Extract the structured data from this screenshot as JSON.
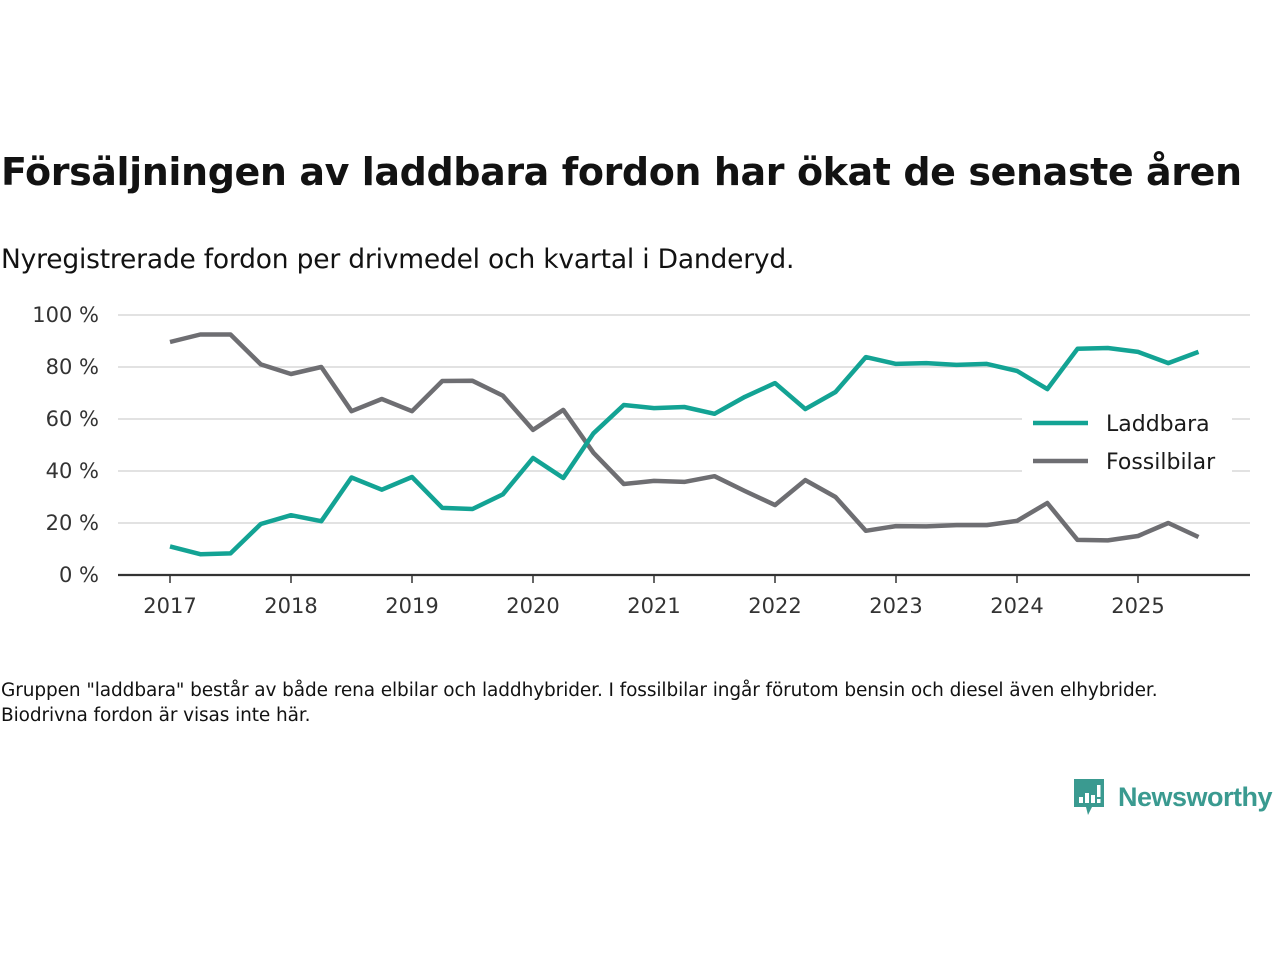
{
  "header": {
    "title": "Försäljningen av laddbara fordon har ökat de senaste åren",
    "subtitle": "Nyregistrerade fordon per drivmedel och kvartal i Danderyd."
  },
  "footnote": "Gruppen \"laddbara\" består av både rena elbilar och laddhybrider. I fossilbilar ingår förutom bensin och diesel även elhybrider. Biodrivna fordon är visas inte här.",
  "brand": {
    "name": "Newsworthy",
    "icon": "newsworthy-logo-icon",
    "color": "#3a9a90"
  },
  "chart_data": {
    "type": "line",
    "title": "Försäljningen av laddbara fordon har ökat de senaste åren",
    "subtitle": "Nyregistrerade fordon per drivmedel och kvartal i Danderyd.",
    "xlabel": "",
    "ylabel": "",
    "x": [
      "2017Q1",
      "2017Q2",
      "2017Q3",
      "2017Q4",
      "2018Q1",
      "2018Q2",
      "2018Q3",
      "2018Q4",
      "2019Q1",
      "2019Q2",
      "2019Q3",
      "2019Q4",
      "2020Q1",
      "2020Q2",
      "2020Q3",
      "2020Q4",
      "2021Q1",
      "2021Q2",
      "2021Q3",
      "2021Q4",
      "2022Q1",
      "2022Q2",
      "2022Q3",
      "2022Q4",
      "2023Q1",
      "2023Q2",
      "2023Q3",
      "2023Q4",
      "2024Q1",
      "2024Q2",
      "2024Q3",
      "2024Q4",
      "2025Q1",
      "2025Q2",
      "2025Q3"
    ],
    "x_tick_labels": [
      "2017",
      "2018",
      "2019",
      "2020",
      "2021",
      "2022",
      "2023",
      "2024",
      "2025"
    ],
    "y_tick_labels": [
      "0 %",
      "20 %",
      "40 %",
      "60 %",
      "80 %",
      "100 %"
    ],
    "y_ticks": [
      0,
      20,
      40,
      60,
      80,
      100
    ],
    "ylim": [
      0,
      100
    ],
    "grid": true,
    "legend_position": "right",
    "series": [
      {
        "name": "Laddbara",
        "color": "#13a394",
        "values": [
          11,
          8,
          8.3,
          19.6,
          23,
          20.7,
          37.5,
          32.8,
          37.7,
          25.8,
          25.4,
          31,
          45,
          37.3,
          54.5,
          65.4,
          64.2,
          64.6,
          62,
          68.5,
          73.8,
          63.8,
          70.4,
          83.8,
          81.2,
          81.5,
          80.8,
          81.2,
          78.5,
          71.5,
          87,
          87.3,
          85.8,
          81.5,
          85.8
        ]
      },
      {
        "name": "Fossilbilar",
        "color": "#6e6e72",
        "values": [
          89.6,
          92.5,
          92.5,
          81,
          77.3,
          80,
          63,
          67.7,
          63,
          74.6,
          74.7,
          69,
          55.8,
          63.5,
          47,
          35,
          36.2,
          35.8,
          38,
          32.3,
          26.9,
          36.5,
          30,
          17,
          18.8,
          18.7,
          19.2,
          19.2,
          20.8,
          27.7,
          13.5,
          13.3,
          15,
          20,
          14.6
        ]
      }
    ]
  }
}
